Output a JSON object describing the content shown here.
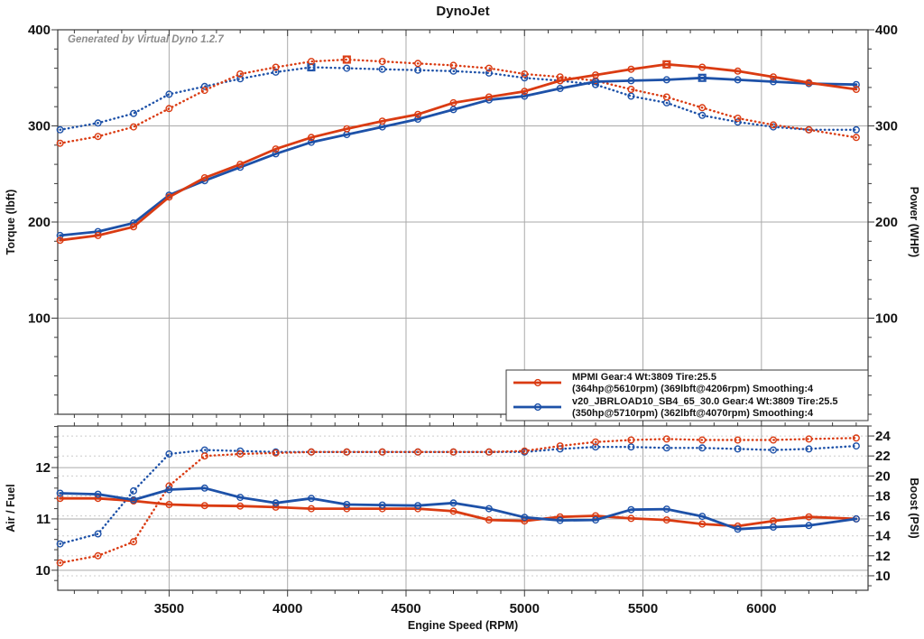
{
  "title": "DynoJet",
  "watermark": "Generated by Virtual Dyno 1.2.7",
  "colors": {
    "red": "#da3b12",
    "blue": "#1d51a8",
    "grid_major": "#aaaaaa",
    "grid_dashed": "#cccccc",
    "axis": "#3a3a3a",
    "text": "#141414",
    "watermark": "#8c8c8c",
    "background": "#ffffff"
  },
  "chart_data": {
    "type": "line",
    "title": "DynoJet",
    "x_axis": {
      "label": "Engine Speed (RPM)",
      "min": 3030,
      "max": 6450,
      "major_ticks": [
        3500,
        4000,
        4500,
        5000,
        5500,
        6000
      ],
      "minor_step": 100
    },
    "rpm": [
      3040,
      3200,
      3350,
      3500,
      3650,
      3800,
      3950,
      4100,
      4250,
      4400,
      4550,
      4700,
      4850,
      5000,
      5150,
      5300,
      5450,
      5600,
      5750,
      5900,
      6050,
      6200,
      6400
    ],
    "upper_plot": {
      "left_axis": {
        "label": "Torque (lbft)",
        "min": 0,
        "max": 400,
        "major_ticks": [
          100,
          200,
          300,
          400
        ],
        "minor_step": 20,
        "gridlines": [
          100,
          200,
          300
        ]
      },
      "right_axis": {
        "label": "Power (WHP)",
        "min": 0,
        "max": 400,
        "major_ticks": [
          100,
          200,
          300,
          400
        ],
        "minor_step": 20
      },
      "series": [
        {
          "id": "v20-torque",
          "name": "v20_JBRLOAD10_SB4_65_30.0 torque (lbft)",
          "color": "blue",
          "style": "dotted",
          "axis": "left",
          "peak_rpm": 4100,
          "values": [
            296,
            303,
            313,
            333,
            341,
            349,
            356,
            361,
            360,
            359,
            358,
            357,
            355,
            350,
            347,
            343,
            331,
            324,
            311,
            304,
            299,
            296,
            296
          ]
        },
        {
          "id": "mpmi-torque",
          "name": "MPMI torque (lbft)",
          "color": "red",
          "style": "dotted",
          "axis": "left",
          "peak_rpm": 4250,
          "values": [
            282,
            289,
            299,
            318,
            337,
            354,
            361,
            367,
            369,
            367,
            365,
            363,
            360,
            354,
            351,
            347,
            338,
            330,
            319,
            308,
            301,
            296,
            288
          ]
        },
        {
          "id": "v20-power",
          "name": "v20_JBRLOAD10_SB4_65_30.0 power (WHP)",
          "color": "blue",
          "style": "solid",
          "axis": "left",
          "peak_rpm": 5750,
          "values": [
            186,
            190,
            199,
            228,
            243,
            257,
            271,
            283,
            291,
            299,
            307,
            317,
            327,
            331,
            339,
            346,
            347,
            348,
            350,
            348,
            346,
            344,
            343
          ]
        },
        {
          "id": "mpmi-power",
          "name": "MPMI power (WHP)",
          "color": "red",
          "style": "solid",
          "axis": "left",
          "peak_rpm": 5600,
          "values": [
            181,
            186,
            195,
            226,
            246,
            260,
            276,
            288,
            297,
            305,
            312,
            324,
            330,
            336,
            347,
            353,
            359,
            364,
            361,
            357,
            351,
            345,
            338
          ]
        }
      ]
    },
    "lower_plot": {
      "left_axis": {
        "label": "Air / Fuel",
        "min": 9.61,
        "max": 12.81,
        "major_ticks": [
          10,
          11,
          12
        ],
        "minor_step": 0.2,
        "gridlines": [
          10,
          11,
          12
        ]
      },
      "right_axis": {
        "label": "Boost (PSI)",
        "min": 8.55,
        "max": 25.0,
        "major_ticks": [
          10,
          12,
          14,
          16,
          18,
          20,
          22,
          24
        ],
        "minor_step": 1,
        "dashed_gridlines": [
          10,
          12,
          14,
          16,
          18,
          20,
          22,
          24
        ]
      },
      "series": [
        {
          "id": "v20-boost",
          "name": "v20_JBRLOAD10_SB4_65_30.0 boost (PSI)",
          "color": "blue",
          "style": "dotted",
          "axis": "right",
          "values": [
            13.2,
            14.2,
            18.5,
            22.2,
            22.6,
            22.5,
            22.4,
            22.4,
            22.4,
            22.4,
            22.4,
            22.4,
            22.4,
            22.4,
            22.7,
            22.9,
            22.9,
            22.8,
            22.8,
            22.7,
            22.6,
            22.7,
            23.0
          ]
        },
        {
          "id": "mpmi-boost",
          "name": "MPMI boost (PSI)",
          "color": "red",
          "style": "dotted",
          "axis": "right",
          "values": [
            11.3,
            12.0,
            13.4,
            19.0,
            22.0,
            22.2,
            22.3,
            22.4,
            22.4,
            22.4,
            22.4,
            22.4,
            22.4,
            22.5,
            23.0,
            23.4,
            23.6,
            23.7,
            23.6,
            23.6,
            23.6,
            23.7,
            23.8
          ]
        },
        {
          "id": "mpmi-afr",
          "name": "MPMI air/fuel ratio",
          "color": "red",
          "style": "solid",
          "axis": "left",
          "values": [
            11.4,
            11.4,
            11.35,
            11.28,
            11.26,
            11.25,
            11.23,
            11.2,
            11.2,
            11.2,
            11.2,
            11.15,
            10.98,
            10.96,
            11.04,
            11.06,
            11.01,
            10.98,
            10.9,
            10.86,
            10.96,
            11.04,
            11.0
          ]
        },
        {
          "id": "v20-afr",
          "name": "v20_JBRLOAD10_SB4_65_30.0 air/fuel ratio",
          "color": "blue",
          "style": "solid",
          "axis": "left",
          "values": [
            11.5,
            11.48,
            11.37,
            11.57,
            11.6,
            11.42,
            11.31,
            11.4,
            11.28,
            11.27,
            11.26,
            11.31,
            11.2,
            11.03,
            10.97,
            10.98,
            11.18,
            11.19,
            11.05,
            10.8,
            10.84,
            10.87,
            11.0
          ]
        }
      ]
    },
    "legend": {
      "entries": [
        {
          "color": "red",
          "line1": "MPMI Gear:4 Wt:3809 Tire:25.5",
          "line2": "(364hp@5610rpm) (369lbft@4206rpm) Smoothing:4"
        },
        {
          "color": "blue",
          "line1": "v20_JBRLOAD10_SB4_65_30.0 Gear:4 Wt:3809 Tire:25.5",
          "line2": "(350hp@5710rpm) (362lbft@4070rpm) Smoothing:4"
        }
      ]
    },
    "layout": {
      "grid": true,
      "legend_position": "inside lower-right of upper plot"
    }
  }
}
